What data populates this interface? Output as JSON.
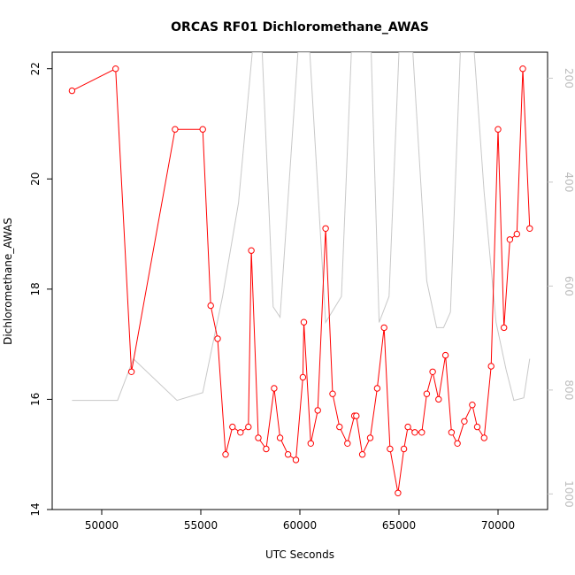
{
  "chart_data": {
    "type": "line",
    "title": "ORCAS RF01 Dichloromethane_AWAS",
    "xlabel": "UTC Seconds",
    "ylabel": "Dichloromethane_AWAS",
    "xlim": [
      47500,
      72500
    ],
    "ylim": [
      14,
      22.3
    ],
    "y2lim": [
      1030,
      150
    ],
    "x_ticks": [
      50000,
      55000,
      60000,
      65000,
      70000
    ],
    "y_ticks": [
      14,
      16,
      18,
      20,
      22
    ],
    "y2_ticks": [
      200,
      400,
      600,
      800,
      1000
    ],
    "colors": {
      "primary": "#ff0000",
      "secondary": "#c8c8c8"
    },
    "series": [
      {
        "axis": "left",
        "x": [
          48500,
          50700,
          51500,
          53700,
          55100,
          55500,
          55850,
          56250,
          56600,
          57000,
          57400,
          57550,
          57900,
          58300,
          58700,
          59000,
          59400,
          59800,
          60150,
          60200,
          60550,
          60900,
          61300,
          61650,
          62000,
          62400,
          62750,
          62850,
          63150,
          63550,
          63900,
          64250,
          64550,
          64950,
          65250,
          65450,
          65800,
          66150,
          66400,
          66700,
          67000,
          67350,
          67650,
          67950,
          68300,
          68700,
          68950,
          69300,
          69650,
          70000,
          70300,
          70600,
          70950,
          71250,
          71600
        ],
        "values": [
          21.6,
          22.0,
          16.5,
          20.9,
          20.9,
          17.7,
          17.1,
          15.0,
          15.5,
          15.4,
          15.5,
          18.7,
          15.3,
          15.1,
          16.2,
          15.3,
          15.0,
          14.9,
          16.4,
          17.4,
          15.2,
          15.8,
          19.1,
          16.1,
          15.5,
          15.2,
          15.7,
          15.7,
          15.0,
          15.3,
          16.2,
          17.3,
          15.1,
          14.3,
          15.1,
          15.5,
          15.4,
          15.4,
          16.1,
          16.5,
          16.0,
          16.8,
          15.4,
          15.2,
          15.6,
          15.9,
          15.5,
          15.3,
          16.6,
          20.9,
          17.3,
          18.9,
          19.0,
          22.0,
          19.1
        ]
      },
      {
        "axis": "right",
        "x": [
          48500,
          50800,
          51600,
          53800,
          55100,
          56100,
          56900,
          57600,
          58100,
          58650,
          59000,
          59900,
          60500,
          61300,
          62100,
          62600,
          63600,
          64000,
          64500,
          65000,
          65700,
          66400,
          66900,
          67250,
          67600,
          68100,
          68800,
          69300,
          69900,
          70400,
          70800,
          71300,
          71600
        ],
        "values": [
          820,
          820,
          740,
          820,
          805,
          620,
          440,
          150,
          150,
          640,
          660,
          150,
          150,
          670,
          620,
          150,
          150,
          670,
          620,
          150,
          150,
          590,
          680,
          680,
          650,
          150,
          150,
          420,
          670,
          760,
          820,
          815,
          740
        ]
      }
    ]
  }
}
